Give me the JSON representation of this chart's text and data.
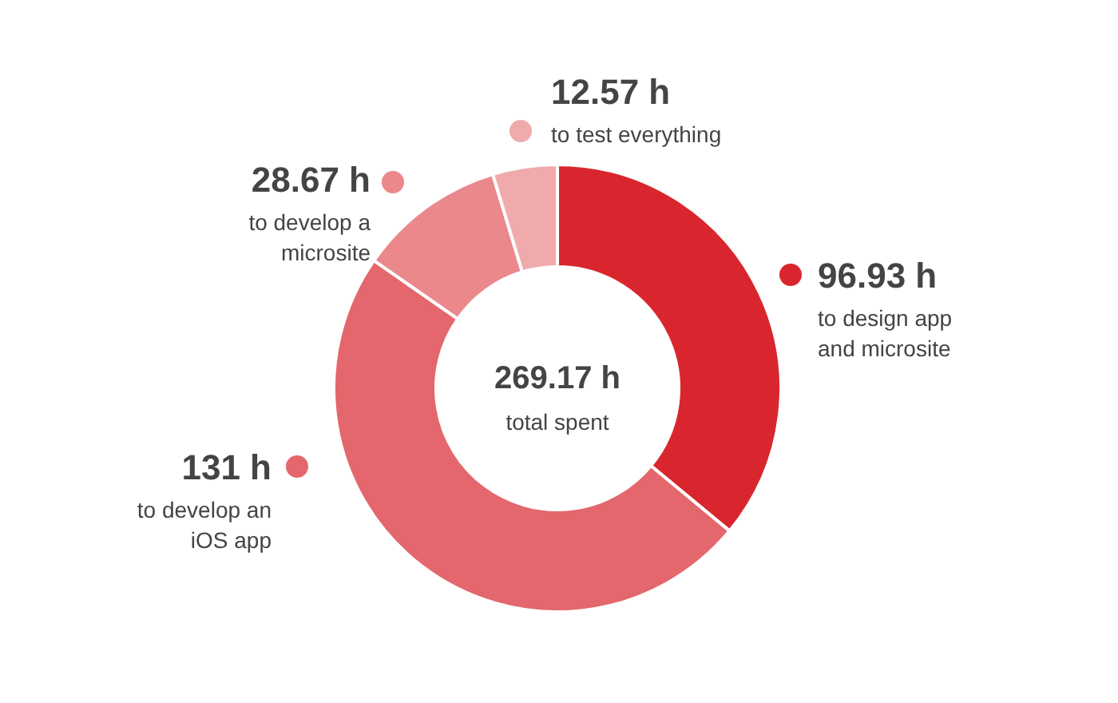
{
  "chart_data": {
    "type": "donut",
    "categories": [
      "to design app and microsite",
      "to develop an iOS app",
      "to develop a microsite",
      "to test everything"
    ],
    "values": [
      96.93,
      131,
      28.67,
      12.57
    ],
    "colors": [
      "#d9262e",
      "#e3676c",
      "#ea888c",
      "#f0aaac"
    ],
    "value_labels": [
      "96.93 h",
      "131 h",
      "28.67 h",
      "12.57 h"
    ],
    "annotations": [
      "269.17 h",
      "total spent"
    ],
    "legend": "top"
  }
}
